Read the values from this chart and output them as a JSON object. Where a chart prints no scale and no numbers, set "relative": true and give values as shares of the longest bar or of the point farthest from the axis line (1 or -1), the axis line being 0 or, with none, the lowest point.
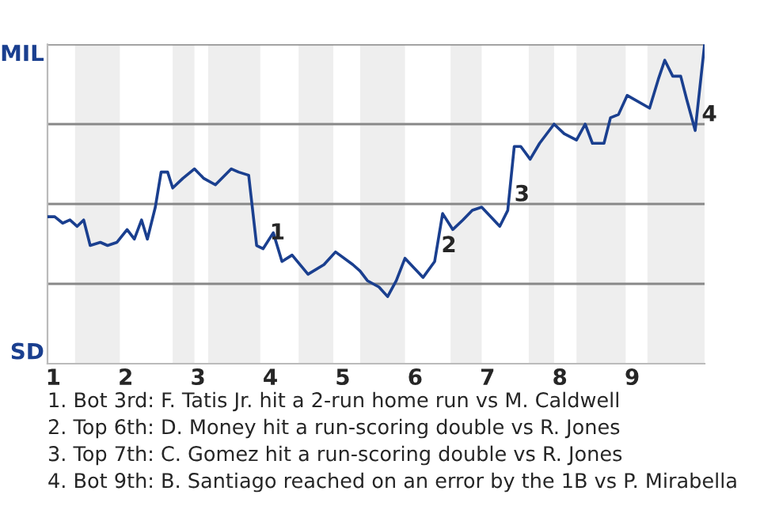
{
  "chart_data": {
    "type": "line",
    "relative": true,
    "x": [
      0.92,
      1.02,
      1.13,
      1.23,
      1.33,
      1.42,
      1.51,
      1.65,
      1.75,
      1.88,
      2.02,
      2.12,
      2.22,
      2.3,
      2.41,
      2.49,
      2.58,
      2.65,
      2.79,
      2.95,
      3.08,
      3.24,
      3.46,
      3.56,
      3.7,
      3.81,
      3.9,
      4.04,
      4.16,
      4.3,
      4.52,
      4.74,
      4.9,
      5.14,
      5.24,
      5.34,
      5.5,
      5.62,
      5.74,
      5.86,
      6.11,
      6.27,
      6.38,
      6.52,
      6.66,
      6.79,
      6.92,
      7.17,
      7.28,
      7.37,
      7.46,
      7.59,
      7.72,
      7.92,
      8.06,
      8.23,
      8.35,
      8.45,
      8.61,
      8.7,
      8.81,
      8.93,
      9.24,
      9.36,
      9.45,
      9.56,
      9.67,
      9.75,
      9.87,
      10.0
    ],
    "series": [
      {
        "color": "#1a3f8f",
        "values": [
          0.46,
          0.46,
          0.44,
          0.45,
          0.43,
          0.45,
          0.37,
          0.38,
          0.37,
          0.38,
          0.42,
          0.39,
          0.45,
          0.39,
          0.49,
          0.6,
          0.6,
          0.55,
          0.58,
          0.61,
          0.58,
          0.56,
          0.61,
          0.6,
          0.59,
          0.37,
          0.36,
          0.41,
          0.32,
          0.34,
          0.28,
          0.31,
          0.35,
          0.31,
          0.29,
          0.26,
          0.24,
          0.21,
          0.26,
          0.33,
          0.27,
          0.32,
          0.47,
          0.42,
          0.45,
          0.48,
          0.49,
          0.43,
          0.48,
          0.68,
          0.68,
          0.64,
          0.69,
          0.75,
          0.72,
          0.7,
          0.75,
          0.69,
          0.69,
          0.77,
          0.78,
          0.84,
          0.8,
          0.89,
          0.95,
          0.9,
          0.9,
          0.83,
          0.73,
          1.0
        ]
      }
    ],
    "xlim": [
      0.92,
      10.0
    ],
    "xticks": [
      1,
      2,
      3,
      4,
      5,
      6,
      7,
      8,
      9
    ],
    "ref_lines": [
      {
        "axis": "y",
        "value": 0.25,
        "color": "#888888"
      },
      {
        "axis": "y",
        "value": 0.5,
        "color": "#888888"
      },
      {
        "axis": "y",
        "value": 0.75,
        "color": "#888888"
      },
      {
        "axis": "y",
        "value": 1.0,
        "color": "#888888"
      }
    ],
    "bands": [
      {
        "axis": "x",
        "from": 1.3,
        "to": 1.92,
        "color": "#eeeeee"
      },
      {
        "axis": "x",
        "from": 2.65,
        "to": 2.95,
        "color": "#eeeeee"
      },
      {
        "axis": "x",
        "from": 3.14,
        "to": 3.86,
        "color": "#eeeeee"
      },
      {
        "axis": "x",
        "from": 4.39,
        "to": 4.87,
        "color": "#eeeeee"
      },
      {
        "axis": "x",
        "from": 5.24,
        "to": 5.86,
        "color": "#eeeeee"
      },
      {
        "axis": "x",
        "from": 6.49,
        "to": 6.92,
        "color": "#eeeeee"
      },
      {
        "axis": "x",
        "from": 7.57,
        "to": 7.92,
        "color": "#eeeeee"
      },
      {
        "axis": "x",
        "from": 8.23,
        "to": 8.91,
        "color": "#eeeeee"
      },
      {
        "axis": "x",
        "from": 9.21,
        "to": 10.0,
        "color": "#eeeeee"
      }
    ],
    "annotations": [
      "MIL",
      "SD",
      {
        "text": "1",
        "x": 3.9,
        "y": 0.36
      },
      {
        "text": "2",
        "x": 6.27,
        "y": 0.32
      },
      {
        "text": "3",
        "x": 7.28,
        "y": 0.48
      },
      {
        "text": "4",
        "x": 9.87,
        "y": 0.73
      },
      "1. Bot 3rd: F. Tatis Jr. hit a 2-run home run vs M. Caldwell",
      "2. Top 6th: D. Money hit a run-scoring double vs R. Jones",
      "3. Top 7th: C. Gomez hit a run-scoring double vs R. Jones",
      "4. Bot 9th: B. Santiago reached on an error by the 1B vs P. Mirabella"
    ]
  }
}
